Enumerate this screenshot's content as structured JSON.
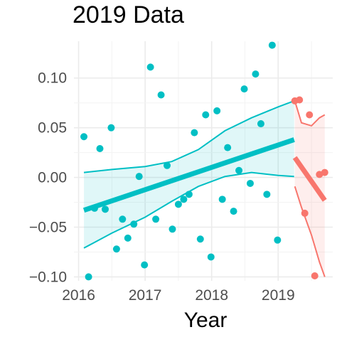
{
  "title": "2019 Data",
  "chart_data": {
    "type": "scatter",
    "title": "2019 Data",
    "xlabel": "Year",
    "ylabel": "",
    "xlim": [
      2015.93,
      2019.82
    ],
    "ylim": [
      -0.104,
      0.137
    ],
    "x_ticks": [
      2016,
      2017,
      2018,
      2019
    ],
    "x_tick_labels": [
      "2016",
      "2017",
      "2018",
      "2019"
    ],
    "y_ticks": [
      -0.1,
      -0.05,
      0.0,
      0.05,
      0.1
    ],
    "y_tick_labels": [
      "−0.10",
      "−0.05",
      "0.00",
      "0.05",
      "0.10"
    ],
    "grid": true,
    "legend": "none",
    "series": [
      {
        "color": "#00BFC4",
        "points": [
          [
            2016.08,
            0.041
          ],
          [
            2016.15,
            -0.1
          ],
          [
            2016.24,
            -0.031
          ],
          [
            2016.32,
            0.029
          ],
          [
            2016.4,
            -0.032
          ],
          [
            2016.49,
            0.05
          ],
          [
            2016.57,
            -0.072
          ],
          [
            2016.66,
            -0.042
          ],
          [
            2016.74,
            -0.061
          ],
          [
            2016.83,
            -0.047
          ],
          [
            2016.91,
            0.001
          ],
          [
            2016.99,
            -0.088
          ],
          [
            2017.08,
            0.111
          ],
          [
            2017.16,
            -0.042
          ],
          [
            2017.24,
            0.083
          ],
          [
            2017.33,
            0.012
          ],
          [
            2017.41,
            -0.052
          ],
          [
            2017.5,
            -0.027
          ],
          [
            2017.58,
            -0.022
          ],
          [
            2017.66,
            -0.017
          ],
          [
            2017.74,
            0.045
          ],
          [
            2017.83,
            -0.062
          ],
          [
            2017.91,
            0.063
          ],
          [
            2017.99,
            -0.08
          ],
          [
            2018.08,
            0.067
          ],
          [
            2018.16,
            -0.022
          ],
          [
            2018.24,
            0.03
          ],
          [
            2018.33,
            -0.034
          ],
          [
            2018.41,
            0.007
          ],
          [
            2018.49,
            0.089
          ],
          [
            2018.58,
            -0.006
          ],
          [
            2018.66,
            0.104
          ],
          [
            2018.74,
            0.054
          ],
          [
            2018.83,
            -0.017
          ],
          [
            2018.91,
            0.133
          ],
          [
            2018.99,
            -0.063
          ]
        ],
        "trend": {
          "x": [
            2016.08,
            2019.24
          ],
          "y": [
            -0.033,
            0.038
          ]
        },
        "band_upper": [
          [
            2016.08,
            0.005
          ],
          [
            2016.5,
            0.008
          ],
          [
            2017.0,
            0.011
          ],
          [
            2017.4,
            0.016
          ],
          [
            2017.8,
            0.028
          ],
          [
            2018.2,
            0.047
          ],
          [
            2018.6,
            0.06
          ],
          [
            2019.0,
            0.071
          ],
          [
            2019.24,
            0.077
          ]
        ],
        "band_lower": [
          [
            2016.08,
            -0.071
          ],
          [
            2016.5,
            -0.056
          ],
          [
            2017.0,
            -0.04
          ],
          [
            2017.4,
            -0.024
          ],
          [
            2017.8,
            -0.009
          ],
          [
            2018.2,
            0.001
          ],
          [
            2018.6,
            0.005
          ],
          [
            2019.0,
            0.002
          ],
          [
            2019.24,
            0.001
          ]
        ]
      },
      {
        "color": "#F8766D",
        "points": [
          [
            2019.25,
            0.077
          ],
          [
            2019.32,
            0.078
          ],
          [
            2019.4,
            -0.036
          ],
          [
            2019.47,
            0.063
          ],
          [
            2019.55,
            -0.099
          ],
          [
            2019.62,
            0.003
          ],
          [
            2019.7,
            0.005
          ]
        ],
        "trend": {
          "x": [
            2019.25,
            2019.7
          ],
          "y": [
            0.02,
            -0.023
          ]
        },
        "band_upper": [
          [
            2019.25,
            0.077
          ],
          [
            2019.35,
            0.055
          ],
          [
            2019.5,
            0.052
          ],
          [
            2019.62,
            0.06
          ],
          [
            2019.7,
            0.063
          ]
        ],
        "band_lower": [
          [
            2019.25,
            -0.009
          ],
          [
            2019.35,
            -0.03
          ],
          [
            2019.5,
            -0.058
          ],
          [
            2019.62,
            -0.085
          ],
          [
            2019.7,
            -0.1
          ]
        ]
      }
    ]
  }
}
